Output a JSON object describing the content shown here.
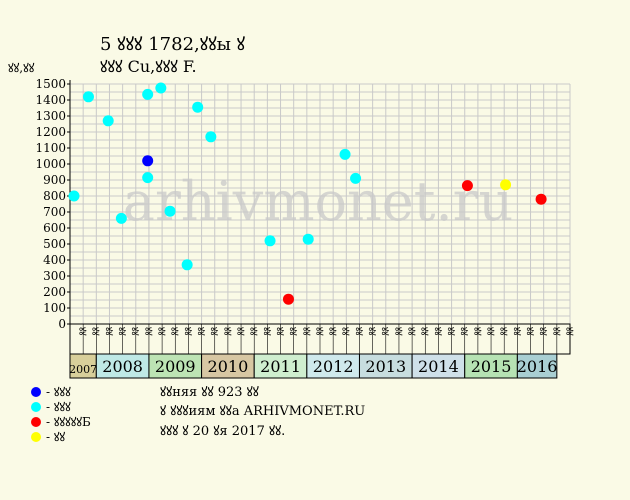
{
  "header": {
    "title_line1": "5 ꙋꙋꙋ 1782,ꙋꙋы ꙋ",
    "title_line2": "ꙋꙋꙋ Cu,ꙋꙋꙋ F.",
    "y_unit": "ꙋꙋ,ꙋꙋ"
  },
  "watermark": "arhivmonet.ru",
  "legend": {
    "items": [
      {
        "label": "- ꙋꙋꙋ",
        "color": "#0000ff"
      },
      {
        "label": "- ꙋꙋꙋ",
        "color": "#00ffff"
      },
      {
        "label": "- ꙋꙋꙋꙋꙋБ",
        "color": "#ff0000"
      },
      {
        "label": "- ꙋꙋ",
        "color": "#ffff00"
      }
    ]
  },
  "footer": {
    "line1": "ꙋꙋняя ꙋꙋ 923 ꙋꙋ",
    "line2": "ꙋ ꙋꙋꙋиям ꙋꙋа ARHIVMONET.RU",
    "line3": "ꙋꙋꙋ ꙋ 20 ꙋя 2017 ꙋꙋ."
  },
  "chart_data": {
    "type": "scatter",
    "ylim": [
      0,
      1500
    ],
    "yticks": [
      0,
      100,
      200,
      300,
      400,
      500,
      600,
      700,
      800,
      900,
      1000,
      1100,
      1200,
      1300,
      1400,
      1500
    ],
    "grid": true,
    "months": [
      "ꙋꙋ",
      "ꙋꙋ",
      "ꙋꙋ",
      "ꙋꙋ",
      "ꙋꙋ",
      "ꙋꙋ",
      "ꙋꙋ",
      "ꙋꙋ",
      "ꙋꙋ",
      "ꙋꙋ",
      "ꙋꙋ",
      "ꙋꙋ",
      "ꙋꙋ",
      "ꙋꙋ",
      "ꙋꙋ",
      "ꙋꙋ",
      "ꙋꙋ",
      "ꙋꙋ",
      "ꙋꙋ",
      "ꙋꙋ",
      "ꙋꙋ",
      "ꙋꙋ",
      "ꙋꙋ",
      "ꙋꙋ",
      "ꙋꙋ",
      "ꙋꙋ",
      "ꙋꙋ",
      "ꙋꙋ",
      "ꙋꙋ",
      "ꙋꙋ",
      "ꙋꙋ",
      "ꙋꙋ",
      "ꙋꙋ",
      "ꙋꙋ",
      "ꙋꙋ",
      "ꙋꙋ",
      "ꙋꙋ",
      "ꙋꙋ"
    ],
    "years": [
      {
        "label": "2007",
        "span": 2,
        "color": "#d8cf9a"
      },
      {
        "label": "2008",
        "span": 4,
        "color": "#bfe9e6"
      },
      {
        "label": "2009",
        "span": 4,
        "color": "#bde4b4"
      },
      {
        "label": "2010",
        "span": 4,
        "color": "#d7c7a3"
      },
      {
        "label": "2011",
        "span": 4,
        "color": "#cfeecf"
      },
      {
        "label": "2012",
        "span": 4,
        "color": "#cfe9ec"
      },
      {
        "label": "2013",
        "span": 4,
        "color": "#c7dddf"
      },
      {
        "label": "2014",
        "span": 4,
        "color": "#cfe0e9"
      },
      {
        "label": "2015",
        "span": 4,
        "color": "#b6e2b3"
      },
      {
        "label": "2016",
        "span": 3,
        "color": "#a9cfd3"
      }
    ],
    "points": [
      {
        "x": 0.0,
        "y": 800,
        "category": 1
      },
      {
        "x": 1.1,
        "y": 1420,
        "category": 1
      },
      {
        "x": 2.6,
        "y": 1270,
        "category": 1
      },
      {
        "x": 3.6,
        "y": 660,
        "category": 1
      },
      {
        "x": 5.6,
        "y": 1020,
        "category": 0
      },
      {
        "x": 5.6,
        "y": 915,
        "category": 1
      },
      {
        "x": 5.6,
        "y": 1435,
        "category": 1
      },
      {
        "x": 6.6,
        "y": 1475,
        "category": 1
      },
      {
        "x": 7.3,
        "y": 705,
        "category": 1
      },
      {
        "x": 8.6,
        "y": 370,
        "category": 1
      },
      {
        "x": 9.4,
        "y": 1355,
        "category": 1
      },
      {
        "x": 10.4,
        "y": 1170,
        "category": 1
      },
      {
        "x": 14.9,
        "y": 520,
        "category": 1
      },
      {
        "x": 16.3,
        "y": 155,
        "category": 2
      },
      {
        "x": 17.8,
        "y": 530,
        "category": 1
      },
      {
        "x": 20.6,
        "y": 1060,
        "category": 1
      },
      {
        "x": 21.4,
        "y": 910,
        "category": 1
      },
      {
        "x": 29.9,
        "y": 865,
        "category": 2
      },
      {
        "x": 32.8,
        "y": 870,
        "category": 3
      },
      {
        "x": 35.5,
        "y": 780,
        "category": 2
      }
    ]
  }
}
